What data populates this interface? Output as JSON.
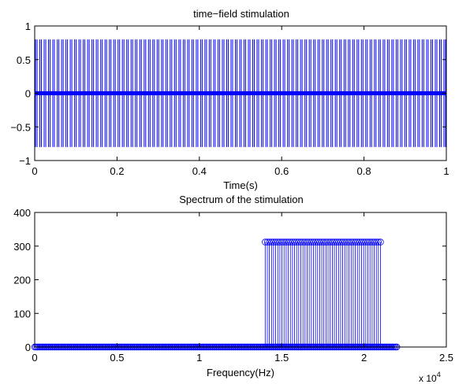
{
  "chart_data": [
    {
      "type": "line",
      "title": "time−field stimulation",
      "xlabel": "Time(s)",
      "ylabel": "",
      "xlim": [
        0,
        1
      ],
      "ylim": [
        -1,
        1
      ],
      "xticks": [
        "0",
        "0.2",
        "0.4",
        "0.6",
        "0.8",
        "1"
      ],
      "yticks": [
        "1",
        "0.5",
        "0",
        "−0.5",
        "−1"
      ],
      "grid": false,
      "series_color": "#0000ff",
      "series": [
        {
          "description": "dense oscillating stimulation signal",
          "peak_amplitude": 0.8,
          "burst_count": 95,
          "baseline_noise_amplitude": 0.03
        }
      ]
    },
    {
      "type": "stem",
      "title": "Spectrum of the stimulation",
      "xlabel": "Frequency(Hz)",
      "ylabel": "",
      "xlim": [
        0,
        25000
      ],
      "ylim": [
        0,
        400
      ],
      "xticks": [
        "0",
        "0.5",
        "1",
        "1.5",
        "2",
        "2.5"
      ],
      "x_multiplier": "x 10",
      "x_multiplier_exp": "4",
      "yticks": [
        "400",
        "300",
        "200",
        "100",
        "0"
      ],
      "grid": false,
      "series_color": "#0000ff",
      "series": [
        {
          "baseline_x_range": [
            0,
            22000
          ],
          "baseline_value": 0,
          "band_x_range": [
            14000,
            21000
          ],
          "band_value": 312,
          "stem_count": 56
        }
      ]
    }
  ]
}
